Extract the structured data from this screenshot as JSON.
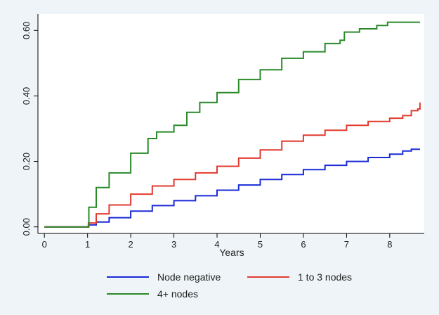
{
  "chart_data": {
    "type": "line",
    "title": "",
    "xlabel": "Years",
    "ylabel": "",
    "xlim": [
      -0.15,
      8.8
    ],
    "ylim": [
      -0.02,
      0.65
    ],
    "xticks": [
      0,
      1,
      2,
      3,
      4,
      5,
      6,
      7,
      8
    ],
    "xtick_labels": [
      "0",
      "1",
      "2",
      "3",
      "4",
      "5",
      "6",
      "7",
      "8"
    ],
    "yticks": [
      0,
      0.2,
      0.4,
      0.6
    ],
    "ytick_labels": [
      "0.00",
      "0.20",
      "0.40",
      "0.60"
    ],
    "grid": false,
    "legend_position": "bottom",
    "step": true,
    "series": [
      {
        "name": "Node negative",
        "color": "#1a2bd6",
        "x": [
          0,
          1.0,
          1.02,
          1.2,
          1.5,
          2.0,
          2.5,
          3.0,
          3.5,
          4.0,
          4.5,
          5.0,
          5.5,
          6.0,
          6.5,
          7.0,
          7.5,
          8.0,
          8.3,
          8.5,
          8.7
        ],
        "y": [
          0,
          0,
          0.006,
          0.015,
          0.028,
          0.048,
          0.065,
          0.08,
          0.095,
          0.112,
          0.128,
          0.145,
          0.16,
          0.175,
          0.188,
          0.2,
          0.212,
          0.222,
          0.232,
          0.237,
          0.237
        ]
      },
      {
        "name": "1 to 3 nodes",
        "color": "#e23a2f",
        "x": [
          0,
          1.0,
          1.02,
          1.2,
          1.5,
          2.0,
          2.5,
          3.0,
          3.5,
          4.0,
          4.5,
          5.0,
          5.5,
          6.0,
          6.5,
          7.0,
          7.5,
          8.0,
          8.3,
          8.5,
          8.65,
          8.7
        ],
        "y": [
          0,
          0,
          0.012,
          0.04,
          0.067,
          0.1,
          0.125,
          0.145,
          0.165,
          0.185,
          0.21,
          0.235,
          0.262,
          0.28,
          0.295,
          0.31,
          0.322,
          0.332,
          0.34,
          0.355,
          0.36,
          0.38
        ]
      },
      {
        "name": "4+ nodes",
        "color": "#2a8a2a",
        "x": [
          0,
          1.0,
          1.03,
          1.2,
          1.5,
          2.0,
          2.4,
          2.6,
          3.0,
          3.3,
          3.6,
          4.0,
          4.5,
          5.0,
          5.5,
          6.0,
          6.5,
          6.85,
          6.95,
          7.3,
          7.7,
          7.95,
          8.7
        ],
        "y": [
          0,
          0,
          0.06,
          0.12,
          0.165,
          0.225,
          0.27,
          0.29,
          0.31,
          0.35,
          0.38,
          0.41,
          0.45,
          0.48,
          0.515,
          0.535,
          0.56,
          0.57,
          0.595,
          0.605,
          0.615,
          0.625,
          0.625
        ]
      }
    ]
  }
}
